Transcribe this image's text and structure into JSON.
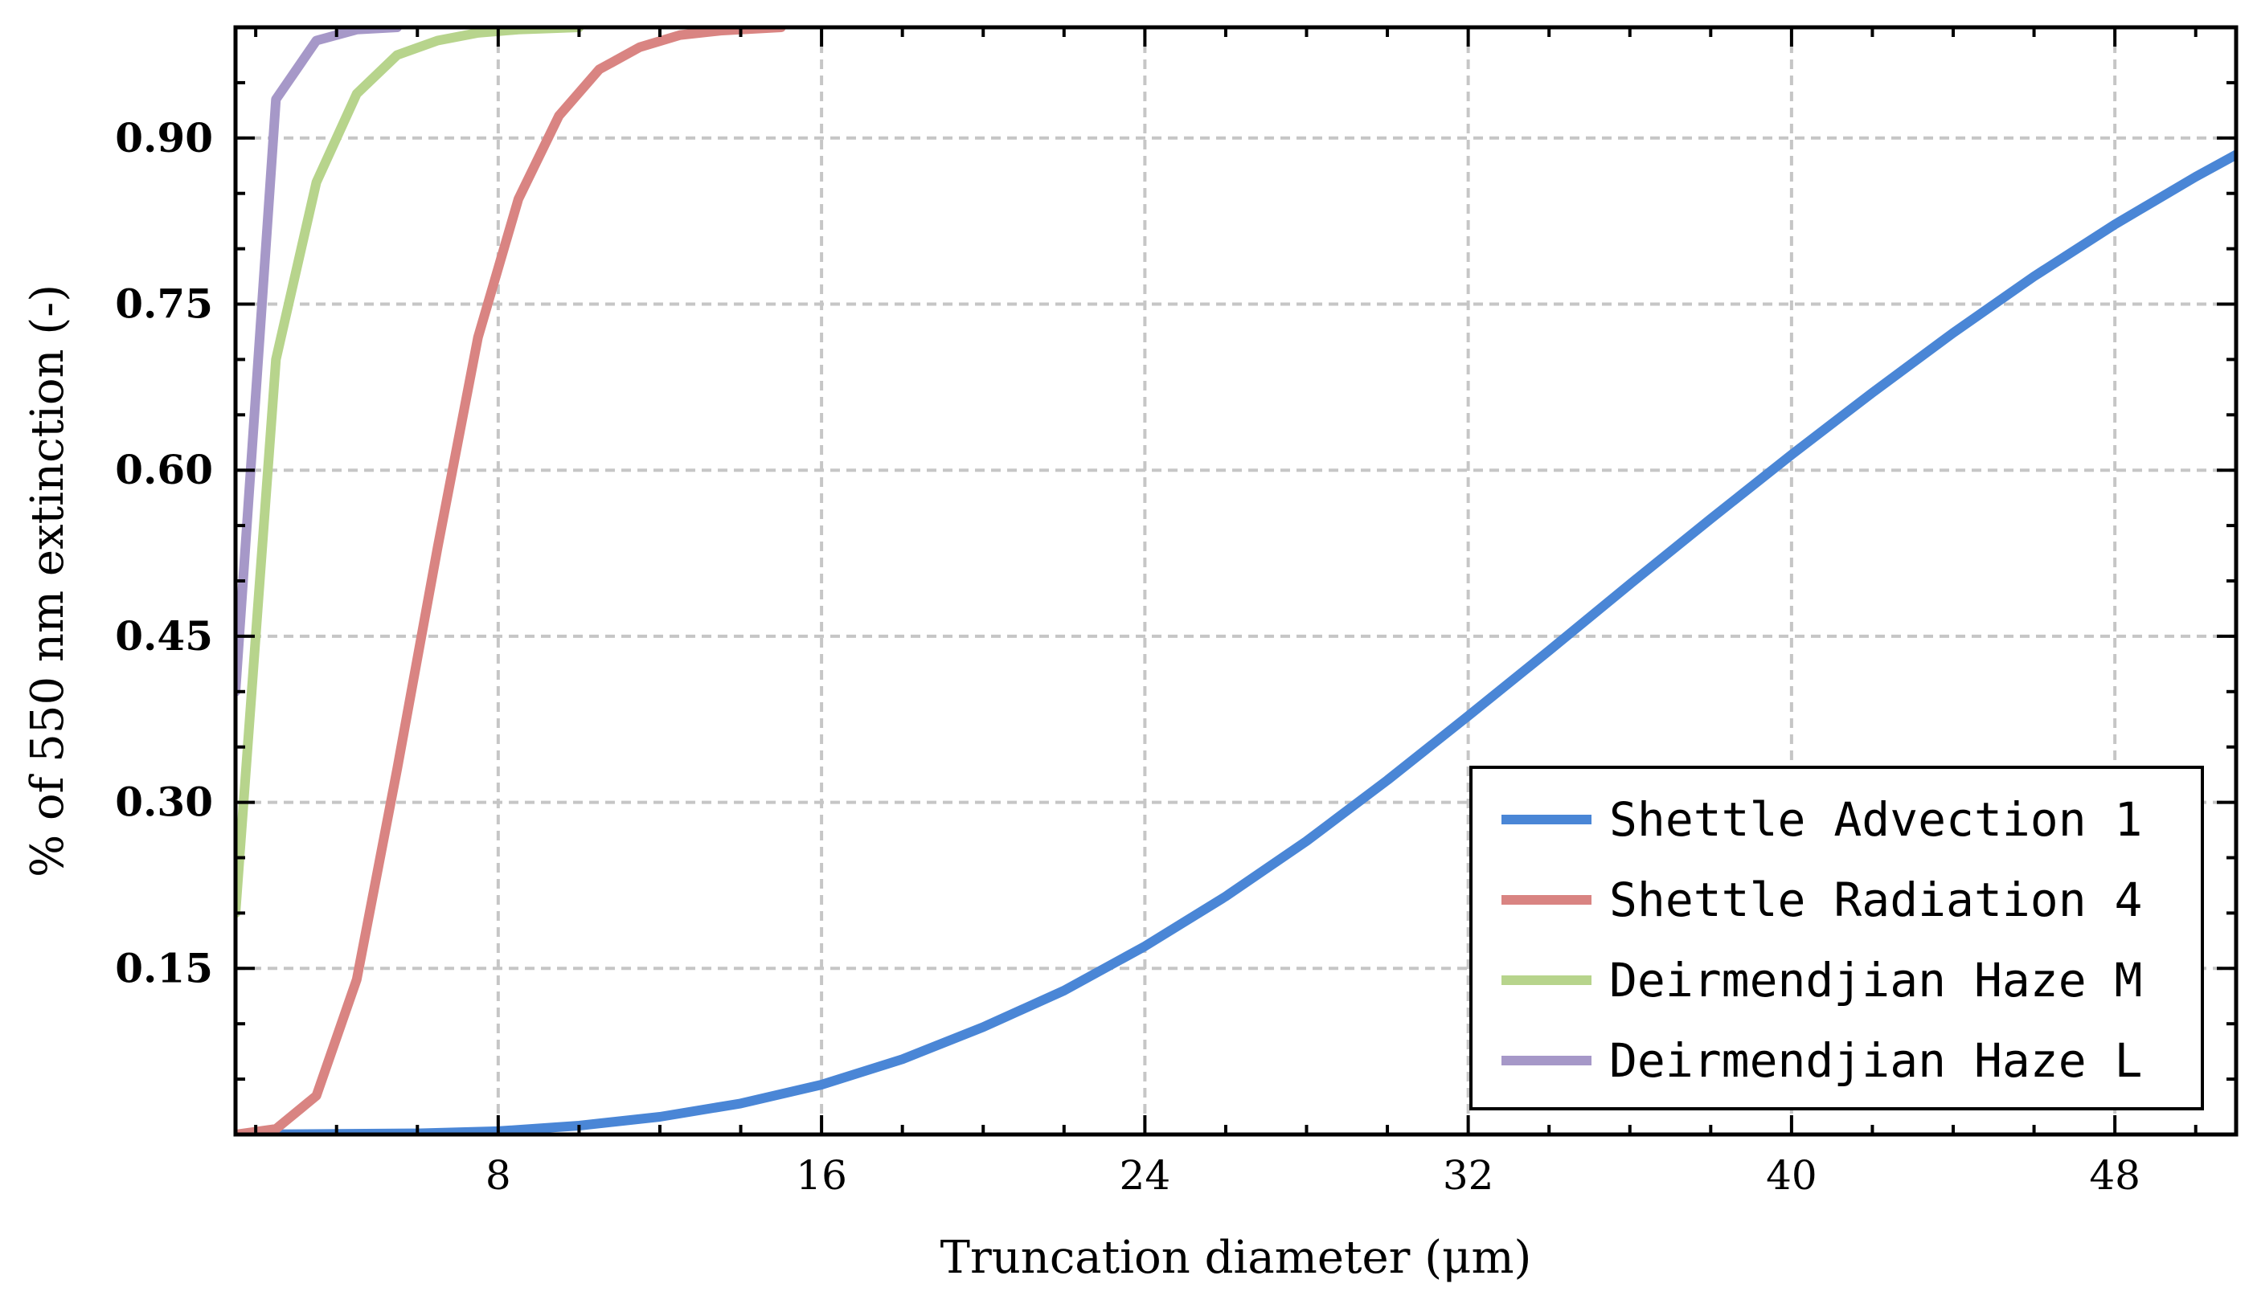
{
  "chart_data": {
    "type": "line",
    "title": "",
    "xlabel": "Truncation diameter (μm)",
    "ylabel": "% of 550 nm extinction (-)",
    "xlim": [
      1.5,
      51.0
    ],
    "ylim": [
      0.0,
      1.0
    ],
    "x_ticks": [
      8,
      16,
      24,
      32,
      40,
      48
    ],
    "x_tick_labels": [
      "8",
      "16",
      "24",
      "32",
      "40",
      "48"
    ],
    "y_ticks": [
      0.15,
      0.3,
      0.45,
      0.6,
      0.75,
      0.9
    ],
    "y_tick_labels": [
      "0.15",
      "0.30",
      "0.45",
      "0.60",
      "0.75",
      "0.90"
    ],
    "grid": true,
    "legend_position": "lower-right",
    "series": [
      {
        "name": "Shettle Advection 1",
        "color": "#4a86d6",
        "x": [
          1.5,
          4,
          6,
          8,
          10,
          12,
          14,
          16,
          18,
          20,
          22,
          24,
          26,
          28,
          30,
          32,
          34,
          36,
          38,
          40,
          42,
          44,
          46,
          48,
          50,
          51
        ],
        "y": [
          0.0,
          0.0005,
          0.001,
          0.003,
          0.008,
          0.016,
          0.028,
          0.045,
          0.068,
          0.097,
          0.13,
          0.17,
          0.215,
          0.265,
          0.32,
          0.378,
          0.437,
          0.497,
          0.556,
          0.614,
          0.67,
          0.724,
          0.775,
          0.822,
          0.865,
          0.885
        ]
      },
      {
        "name": "Shettle Radiation 4",
        "color": "#d98482",
        "x": [
          1.5,
          2.5,
          3.5,
          4.5,
          5.5,
          6.5,
          7.5,
          8.5,
          9.5,
          10.5,
          11.5,
          12.5,
          13.5,
          15
        ],
        "y": [
          0.0,
          0.005,
          0.035,
          0.14,
          0.33,
          0.53,
          0.72,
          0.845,
          0.92,
          0.962,
          0.982,
          0.993,
          0.997,
          1.0
        ]
      },
      {
        "name": "Deirmendjian Haze M",
        "color": "#b7d48c",
        "x": [
          1.5,
          2.5,
          3.5,
          4.5,
          5.5,
          6.5,
          7.5,
          8.5,
          10
        ],
        "y": [
          0.2,
          0.7,
          0.86,
          0.94,
          0.975,
          0.988,
          0.995,
          0.998,
          1.0
        ]
      },
      {
        "name": "Deirmendjian Haze L",
        "color": "#a698c8",
        "x": [
          1.5,
          2.5,
          3.5,
          4.5,
          5.5
        ],
        "y": [
          0.4,
          0.935,
          0.988,
          0.998,
          1.0
        ]
      }
    ]
  }
}
